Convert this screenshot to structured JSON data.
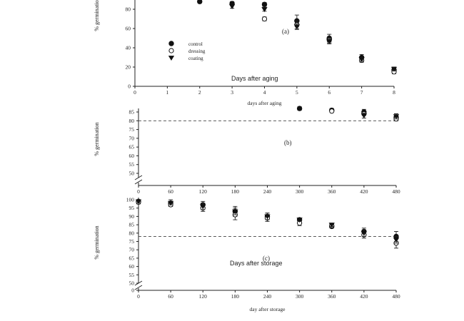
{
  "chart_data": [
    {
      "type": "scatter",
      "panel_label": "(a)",
      "ylabel": "% germination",
      "xlabel": "days after aging",
      "annotation": "Days after aging",
      "x_ticks": [
        0,
        1,
        2,
        3,
        4,
        5,
        6,
        7,
        8
      ],
      "y_ticks": [
        0,
        20,
        40,
        60,
        80
      ],
      "xlim": [
        0,
        8
      ],
      "ylim": [
        0,
        90
      ],
      "legend": [
        {
          "label": "control",
          "marker": "circle-filled"
        },
        {
          "label": "dressing",
          "marker": "circle-open"
        },
        {
          "label": "coating",
          "marker": "triangle-down-filled"
        }
      ],
      "series": [
        {
          "name": "control",
          "marker": "circle-filled",
          "points": [
            [
              2,
              88,
              1.5
            ],
            [
              3,
              86,
              2
            ],
            [
              4,
              85,
              2
            ],
            [
              5,
              68,
              6
            ],
            [
              6,
              50,
              4
            ],
            [
              7,
              30,
              3
            ],
            [
              8,
              17,
              3
            ]
          ]
        },
        {
          "name": "dressing",
          "marker": "circle-open",
          "points": [
            [
              4,
              70,
              2
            ],
            [
              5,
              64,
              4
            ],
            [
              6,
              48,
              3
            ],
            [
              7,
              27,
              2
            ],
            [
              8,
              15,
              2
            ]
          ]
        },
        {
          "name": "coating",
          "marker": "triangle-down-filled",
          "points": [
            [
              3,
              83,
              2
            ],
            [
              4,
              80,
              2
            ],
            [
              5,
              62,
              3
            ],
            [
              6,
              47,
              3
            ],
            [
              7,
              28,
              2
            ],
            [
              8,
              18,
              2
            ]
          ]
        }
      ]
    },
    {
      "type": "scatter",
      "panel_label": "(b)",
      "ylabel": "% germination",
      "x_ticks": [
        0,
        60,
        120,
        180,
        240,
        300,
        360,
        420,
        480
      ],
      "y_ticks": [
        50,
        55,
        60,
        65,
        70,
        75,
        80,
        85
      ],
      "xlim": [
        0,
        480
      ],
      "ylim": [
        50,
        87
      ],
      "axis_break": true,
      "reference_line": 80,
      "series": [
        {
          "name": "control",
          "marker": "circle-filled",
          "points": [
            [
              300,
              87,
              1
            ],
            [
              360,
              86,
              1
            ],
            [
              420,
              85,
              1.5
            ],
            [
              480,
              82,
              2
            ]
          ]
        },
        {
          "name": "dressing",
          "marker": "circle-open",
          "points": [
            [
              360,
              85.5,
              0.5
            ],
            [
              420,
              84,
              1
            ],
            [
              480,
              81,
              1
            ]
          ]
        },
        {
          "name": "coating",
          "marker": "triangle-down-filled",
          "points": [
            [
              420,
              83,
              1.5
            ],
            [
              480,
              82.5,
              1.5
            ]
          ]
        }
      ]
    },
    {
      "type": "scatter",
      "panel_label": "(c)",
      "ylabel": "% germination",
      "xlabel": "day after storage",
      "annotation": "Days after storage",
      "x_ticks": [
        0,
        60,
        120,
        180,
        240,
        300,
        360,
        420,
        480
      ],
      "y_ticks": [
        0,
        50,
        55,
        60,
        65,
        70,
        75,
        80,
        85,
        90,
        95,
        100
      ],
      "xlim": [
        0,
        480
      ],
      "ylim": [
        48,
        100
      ],
      "axis_break": true,
      "reference_line": 78,
      "series": [
        {
          "name": "control",
          "marker": "circle-filled",
          "points": [
            [
              0,
              99,
              1
            ],
            [
              60,
              98,
              2
            ],
            [
              120,
              97,
              2
            ],
            [
              180,
              93,
              3
            ],
            [
              240,
              90,
              2
            ],
            [
              300,
              88,
              1
            ],
            [
              360,
              84,
              1
            ],
            [
              420,
              81,
              2
            ],
            [
              480,
              78,
              3
            ]
          ]
        },
        {
          "name": "dressing",
          "marker": "circle-open",
          "points": [
            [
              0,
              98.5,
              1
            ],
            [
              60,
              97,
              1
            ],
            [
              120,
              95,
              2
            ],
            [
              180,
              91,
              3
            ],
            [
              240,
              89,
              2
            ],
            [
              300,
              86,
              1.5
            ],
            [
              360,
              84.5,
              1
            ],
            [
              420,
              79,
              2
            ],
            [
              480,
              74,
              3
            ]
          ]
        },
        {
          "name": "coating",
          "marker": "triangle-down-filled",
          "points": [
            [
              0,
              99,
              1
            ],
            [
              60,
              98,
              1
            ],
            [
              120,
              96,
              2
            ],
            [
              180,
              93,
              2
            ],
            [
              240,
              90,
              2
            ],
            [
              300,
              88,
              1
            ],
            [
              360,
              85,
              1
            ],
            [
              420,
              80,
              2
            ],
            [
              480,
              76,
              2
            ]
          ]
        }
      ]
    }
  ]
}
